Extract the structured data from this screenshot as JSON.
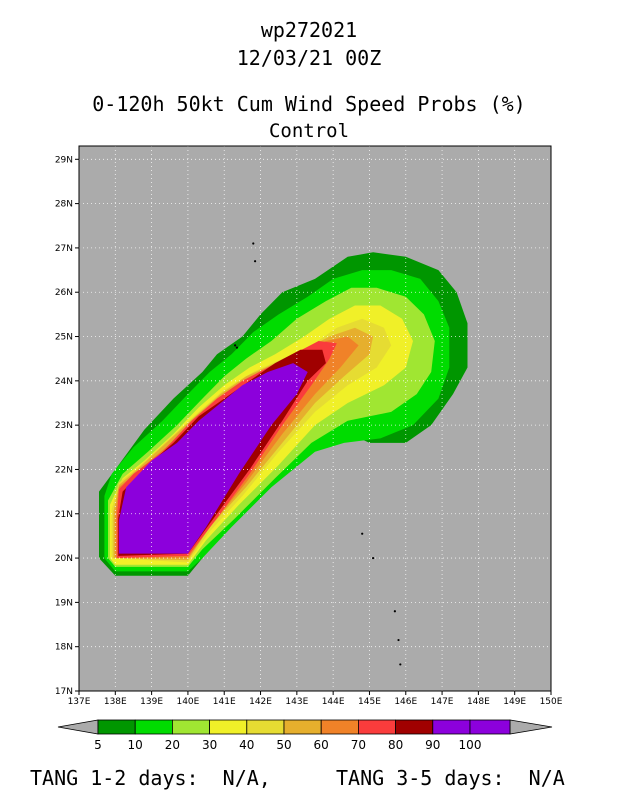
{
  "header": {
    "storm_id": "wp272021",
    "datetime": "12/03/21 00Z",
    "product": "0-120h 50kt Cum Wind Speed Probs (%)",
    "member": "Control"
  },
  "footer": {
    "tang_12": "TANG 1-2 days:  N/A,",
    "tang_35": "TANG 3-5 days:  N/A"
  },
  "colors": {
    "map_background": "#ababab",
    "5": "#009600",
    "10": "#00dc00",
    "20": "#a0e632",
    "30": "#f0f028",
    "40": "#e6dc32",
    "50": "#e6af2d",
    "60": "#f08228",
    "70": "#fa3c3c",
    "80": "#a00000",
    "90": "#8c00dc"
  },
  "chart_data": {
    "type": "filled-contour-map",
    "title": "0-120h 50kt Cum Wind Speed Probs (%)",
    "subtitle": "Control",
    "x_axis": {
      "ticks": [
        "137E",
        "138E",
        "139E",
        "140E",
        "141E",
        "142E",
        "143E",
        "144E",
        "145E",
        "146E",
        "147E",
        "148E",
        "149E",
        "150E"
      ],
      "range": [
        137,
        150
      ]
    },
    "y_axis": {
      "ticks": [
        "17N",
        "18N",
        "19N",
        "20N",
        "21N",
        "22N",
        "23N",
        "24N",
        "25N",
        "26N",
        "27N",
        "28N",
        "29N"
      ],
      "range": [
        17,
        29.3
      ]
    },
    "grid": true,
    "colorbar": {
      "levels": [
        "5",
        "10",
        "20",
        "30",
        "40",
        "50",
        "60",
        "70",
        "80",
        "90",
        "100"
      ],
      "colors": [
        "#009600",
        "#00dc00",
        "#a0e632",
        "#f0f028",
        "#e6dc32",
        "#e6af2d",
        "#f08228",
        "#fa3c3c",
        "#a00000",
        "#8c00dc"
      ]
    },
    "contours": [
      {
        "level": 5,
        "points": [
          [
            137.55,
            21.5
          ],
          [
            137.55,
            20.0
          ],
          [
            138.0,
            19.6
          ],
          [
            140.0,
            19.6
          ],
          [
            140.4,
            20.0
          ],
          [
            141.0,
            20.6
          ],
          [
            142.4,
            21.7
          ],
          [
            143.6,
            22.7
          ],
          [
            144.2,
            22.9
          ],
          [
            145.0,
            22.6
          ],
          [
            146.0,
            22.6
          ],
          [
            146.7,
            23.0
          ],
          [
            147.3,
            23.7
          ],
          [
            147.7,
            24.3
          ],
          [
            147.7,
            25.3
          ],
          [
            147.4,
            26.0
          ],
          [
            146.9,
            26.5
          ],
          [
            146.0,
            26.8
          ],
          [
            145.1,
            26.9
          ],
          [
            144.4,
            26.8
          ],
          [
            143.5,
            26.3
          ],
          [
            142.6,
            26.0
          ],
          [
            142.0,
            25.5
          ],
          [
            141.5,
            25.0
          ],
          [
            140.8,
            24.6
          ],
          [
            140.4,
            24.2
          ],
          [
            139.6,
            23.6
          ],
          [
            138.8,
            22.9
          ],
          [
            138.0,
            22.0
          ]
        ]
      },
      {
        "level": 10,
        "points": [
          [
            137.7,
            21.4
          ],
          [
            137.7,
            20.0
          ],
          [
            138.0,
            19.7
          ],
          [
            140.0,
            19.7
          ],
          [
            140.4,
            20.0
          ],
          [
            141.2,
            20.7
          ],
          [
            142.3,
            21.6
          ],
          [
            143.5,
            22.4
          ],
          [
            144.3,
            22.6
          ],
          [
            145.3,
            22.7
          ],
          [
            146.2,
            23.0
          ],
          [
            146.9,
            23.6
          ],
          [
            147.2,
            24.3
          ],
          [
            147.2,
            25.2
          ],
          [
            146.9,
            25.8
          ],
          [
            146.4,
            26.3
          ],
          [
            145.6,
            26.5
          ],
          [
            144.8,
            26.5
          ],
          [
            144.0,
            26.3
          ],
          [
            143.3,
            25.9
          ],
          [
            142.5,
            25.5
          ],
          [
            141.8,
            25.1
          ],
          [
            141.2,
            24.6
          ],
          [
            140.6,
            24.2
          ],
          [
            140.0,
            23.7
          ],
          [
            139.3,
            23.1
          ],
          [
            138.5,
            22.5
          ],
          [
            137.9,
            21.9
          ]
        ]
      },
      {
        "level": 20,
        "points": [
          [
            137.8,
            21.3
          ],
          [
            137.8,
            20.0
          ],
          [
            138.0,
            19.8
          ],
          [
            140.0,
            19.8
          ],
          [
            140.4,
            20.2
          ],
          [
            141.3,
            20.9
          ],
          [
            142.4,
            21.8
          ],
          [
            143.4,
            22.6
          ],
          [
            144.4,
            23.1
          ],
          [
            145.6,
            23.3
          ],
          [
            146.3,
            23.7
          ],
          [
            146.7,
            24.2
          ],
          [
            146.8,
            24.9
          ],
          [
            146.5,
            25.5
          ],
          [
            146.0,
            25.9
          ],
          [
            145.2,
            26.1
          ],
          [
            144.5,
            26.1
          ],
          [
            143.8,
            25.8
          ],
          [
            143.0,
            25.4
          ],
          [
            142.3,
            24.9
          ],
          [
            141.6,
            24.5
          ],
          [
            141.0,
            24.1
          ],
          [
            140.4,
            23.6
          ],
          [
            139.7,
            23.0
          ],
          [
            138.9,
            22.4
          ],
          [
            138.2,
            21.9
          ]
        ]
      },
      {
        "level": 30,
        "points": [
          [
            137.85,
            21.2
          ],
          [
            137.85,
            20.0
          ],
          [
            138.0,
            19.85
          ],
          [
            140.0,
            19.85
          ],
          [
            140.5,
            20.4
          ],
          [
            141.4,
            21.2
          ],
          [
            142.5,
            22.1
          ],
          [
            143.5,
            23.0
          ],
          [
            144.4,
            23.5
          ],
          [
            145.4,
            23.9
          ],
          [
            146.0,
            24.3
          ],
          [
            146.2,
            24.9
          ],
          [
            145.9,
            25.4
          ],
          [
            145.3,
            25.7
          ],
          [
            144.6,
            25.7
          ],
          [
            143.9,
            25.4
          ],
          [
            143.2,
            25.0
          ],
          [
            142.4,
            24.6
          ],
          [
            141.7,
            24.3
          ],
          [
            141.0,
            23.9
          ],
          [
            140.3,
            23.4
          ],
          [
            139.6,
            22.8
          ],
          [
            138.8,
            22.2
          ],
          [
            138.2,
            21.8
          ]
        ]
      },
      {
        "level": 40,
        "points": [
          [
            137.9,
            21.1
          ],
          [
            137.9,
            20.0
          ],
          [
            140.0,
            19.9
          ],
          [
            140.6,
            20.6
          ],
          [
            141.5,
            21.4
          ],
          [
            142.5,
            22.4
          ],
          [
            143.5,
            23.3
          ],
          [
            144.4,
            23.9
          ],
          [
            145.2,
            24.3
          ],
          [
            145.6,
            24.8
          ],
          [
            145.4,
            25.2
          ],
          [
            144.8,
            25.4
          ],
          [
            144.1,
            25.2
          ],
          [
            143.4,
            24.8
          ],
          [
            142.6,
            24.5
          ],
          [
            141.8,
            24.2
          ],
          [
            141.0,
            23.8
          ],
          [
            140.3,
            23.3
          ],
          [
            139.5,
            22.7
          ],
          [
            138.7,
            22.1
          ],
          [
            138.1,
            21.7
          ]
        ]
      },
      {
        "level": 50,
        "points": [
          [
            137.95,
            21.05
          ],
          [
            137.95,
            20.0
          ],
          [
            140.0,
            19.95
          ],
          [
            140.6,
            20.7
          ],
          [
            141.6,
            21.6
          ],
          [
            142.6,
            22.6
          ],
          [
            143.5,
            23.5
          ],
          [
            144.3,
            24.1
          ],
          [
            145.0,
            24.6
          ],
          [
            145.1,
            25.0
          ],
          [
            144.6,
            25.2
          ],
          [
            143.9,
            25.0
          ],
          [
            143.2,
            24.7
          ],
          [
            142.4,
            24.4
          ],
          [
            141.6,
            24.1
          ],
          [
            140.9,
            23.7
          ],
          [
            140.2,
            23.2
          ],
          [
            139.4,
            22.6
          ],
          [
            138.6,
            22.0
          ],
          [
            138.1,
            21.65
          ]
        ]
      },
      {
        "level": 60,
        "points": [
          [
            138.0,
            21.0
          ],
          [
            138.0,
            20.0
          ],
          [
            140.0,
            20.0
          ],
          [
            140.7,
            20.8
          ],
          [
            141.6,
            21.7
          ],
          [
            142.6,
            22.8
          ],
          [
            143.5,
            23.7
          ],
          [
            144.2,
            24.3
          ],
          [
            144.7,
            24.8
          ],
          [
            144.4,
            25.0
          ],
          [
            143.8,
            24.9
          ],
          [
            143.1,
            24.6
          ],
          [
            142.3,
            24.3
          ],
          [
            141.6,
            24.0
          ],
          [
            140.9,
            23.6
          ],
          [
            140.2,
            23.1
          ],
          [
            139.4,
            22.5
          ],
          [
            138.6,
            21.95
          ],
          [
            138.1,
            21.6
          ]
        ]
      },
      {
        "level": 70,
        "points": [
          [
            138.05,
            20.95
          ],
          [
            138.05,
            20.0
          ],
          [
            140.0,
            20.05
          ],
          [
            140.8,
            20.9
          ],
          [
            141.7,
            21.9
          ],
          [
            142.6,
            23.0
          ],
          [
            143.4,
            23.9
          ],
          [
            143.9,
            24.5
          ],
          [
            144.1,
            24.85
          ],
          [
            143.6,
            24.9
          ],
          [
            142.9,
            24.6
          ],
          [
            142.2,
            24.3
          ],
          [
            141.5,
            24.0
          ],
          [
            140.8,
            23.6
          ],
          [
            140.1,
            23.1
          ],
          [
            139.3,
            22.4
          ],
          [
            138.5,
            21.9
          ],
          [
            138.1,
            21.55
          ]
        ]
      },
      {
        "level": 80,
        "points": [
          [
            138.08,
            20.9
          ],
          [
            138.08,
            20.05
          ],
          [
            140.0,
            20.1
          ],
          [
            140.8,
            21.0
          ],
          [
            141.7,
            22.0
          ],
          [
            142.6,
            23.1
          ],
          [
            143.3,
            24.0
          ],
          [
            143.8,
            24.4
          ],
          [
            143.7,
            24.7
          ],
          [
            143.1,
            24.7
          ],
          [
            142.4,
            24.4
          ],
          [
            141.7,
            24.0
          ],
          [
            141.0,
            23.6
          ],
          [
            140.3,
            23.2
          ],
          [
            139.6,
            22.6
          ],
          [
            138.9,
            22.1
          ],
          [
            138.2,
            21.5
          ]
        ]
      },
      {
        "level": 90,
        "points": [
          [
            138.1,
            20.85
          ],
          [
            138.1,
            20.1
          ],
          [
            140.0,
            20.1
          ],
          [
            140.5,
            20.7
          ],
          [
            141.4,
            21.9
          ],
          [
            142.3,
            23.0
          ],
          [
            143.0,
            23.7
          ],
          [
            143.3,
            24.2
          ],
          [
            142.9,
            24.4
          ],
          [
            142.2,
            24.2
          ],
          [
            141.5,
            23.9
          ],
          [
            140.9,
            23.5
          ],
          [
            140.3,
            23.1
          ],
          [
            139.7,
            22.6
          ],
          [
            139.0,
            22.2
          ],
          [
            138.3,
            21.6
          ]
        ]
      }
    ],
    "islands": [
      [
        141.8,
        27.1
      ],
      [
        141.85,
        26.7
      ],
      [
        141.3,
        24.8
      ],
      [
        141.35,
        24.75
      ],
      [
        144.8,
        20.55
      ],
      [
        145.1,
        20.0
      ],
      [
        145.7,
        18.8
      ],
      [
        145.8,
        18.15
      ],
      [
        145.85,
        17.6
      ]
    ]
  }
}
